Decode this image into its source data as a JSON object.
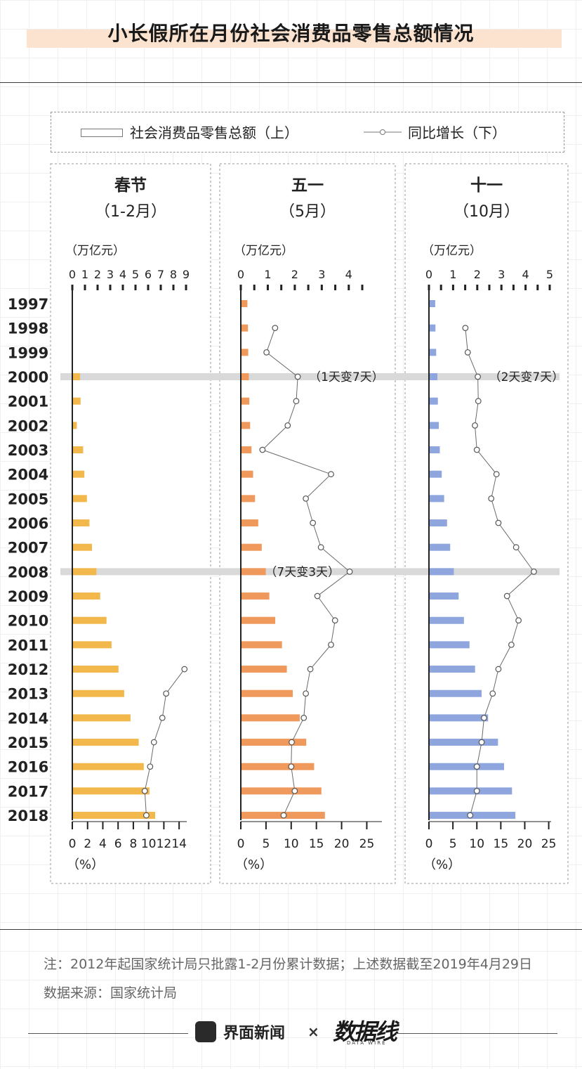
{
  "title": "小长假所在月份社会消费品零售总额情况",
  "legend": {
    "bar_label": "社会消费品零售总额（上）",
    "line_label": "同比增长（下）"
  },
  "chart_data": [
    {
      "type": "bar+line",
      "title": "春节",
      "subtitle": "（1-2月）",
      "top_axis_unit": "（万亿元）",
      "top_ticks": [
        "0",
        "1",
        "2",
        "3",
        "4",
        "5",
        "6",
        "7",
        "8",
        "9"
      ],
      "bottom_axis_unit": "（%）",
      "bottom_ticks": [
        "0",
        "2",
        "4",
        "6",
        "8",
        "10",
        "12",
        "14"
      ],
      "years": [
        "1997",
        "1998",
        "1999",
        "2000",
        "2001",
        "2002",
        "2003",
        "2004",
        "2005",
        "2006",
        "2007",
        "2008",
        "2009",
        "2010",
        "2011",
        "2012",
        "2013",
        "2014",
        "2015",
        "2016",
        "2017",
        "2018"
      ],
      "sales": [
        0,
        0,
        0,
        0.55,
        0.6,
        0.3,
        0.8,
        0.9,
        1.1,
        1.3,
        1.5,
        1.85,
        2.15,
        2.65,
        3.05,
        3.6,
        4.05,
        4.55,
        5.2,
        5.6,
        6.05,
        6.5
      ],
      "growth_years": [
        "2012",
        "2013",
        "2014",
        "2015",
        "2016",
        "2017",
        "2018"
      ],
      "growth": [
        14.7,
        12.3,
        11.8,
        10.7,
        10.2,
        9.5,
        9.7
      ],
      "bar_color": "#f2b84b",
      "xlim_top": [
        0,
        9
      ],
      "xlim_bottom": [
        0,
        15
      ]
    },
    {
      "type": "bar+line",
      "title": "五一",
      "subtitle": "（5月）",
      "top_axis_unit": "（万亿元）",
      "top_ticks": [
        "0",
        "1",
        "2",
        "3",
        "4"
      ],
      "bottom_axis_unit": "（%）",
      "bottom_ticks": [
        "0",
        "5",
        "10",
        "15",
        "20",
        "25"
      ],
      "years": [
        "1997",
        "1998",
        "1999",
        "2000",
        "2001",
        "2002",
        "2003",
        "2004",
        "2005",
        "2006",
        "2007",
        "2008",
        "2009",
        "2010",
        "2011",
        "2012",
        "2013",
        "2014",
        "2015",
        "2016",
        "2017",
        "2018"
      ],
      "sales": [
        0.22,
        0.24,
        0.25,
        0.27,
        0.29,
        0.32,
        0.37,
        0.43,
        0.5,
        0.62,
        0.75,
        0.9,
        1.03,
        1.25,
        1.5,
        1.68,
        1.9,
        2.16,
        2.4,
        2.69,
        2.96,
        3.09
      ],
      "growth_years": [
        "1998",
        "1999",
        "2000",
        "2001",
        "2002",
        "2003",
        "2004",
        "2005",
        "2006",
        "2007",
        "2008",
        "2009",
        "2010",
        "2011",
        "2012",
        "2013",
        "2014",
        "2015",
        "2016",
        "2017",
        "2018"
      ],
      "growth": [
        6.8,
        5.1,
        11.3,
        11.0,
        9.3,
        4.3,
        17.9,
        12.9,
        14.3,
        15.9,
        21.6,
        15.2,
        18.7,
        17.9,
        13.8,
        12.9,
        12.5,
        10.1,
        10.0,
        10.7,
        8.5
      ],
      "annotations": [
        {
          "year": "2000",
          "text": "（1天变7天）"
        },
        {
          "year": "2008",
          "text": "（7天变3天）"
        }
      ],
      "bar_color": "#ef9a5c",
      "xlim_top": [
        0,
        4.5
      ],
      "xlim_bottom": [
        0,
        28
      ]
    },
    {
      "type": "bar+line",
      "title": "十一",
      "subtitle": "（10月）",
      "top_axis_unit": "（万亿元）",
      "top_ticks": [
        "0",
        "1",
        "2",
        "3",
        "4",
        "5"
      ],
      "bottom_axis_unit": "（%）",
      "bottom_ticks": [
        "0",
        "5",
        "10",
        "15",
        "20",
        "25"
      ],
      "years": [
        "1997",
        "1998",
        "1999",
        "2000",
        "2001",
        "2002",
        "2003",
        "2004",
        "2005",
        "2006",
        "2007",
        "2008",
        "2009",
        "2010",
        "2011",
        "2012",
        "2013",
        "2014",
        "2015",
        "2016",
        "2017",
        "2018"
      ],
      "sales": [
        0.23,
        0.24,
        0.27,
        0.32,
        0.34,
        0.38,
        0.42,
        0.5,
        0.6,
        0.72,
        0.85,
        1.0,
        1.2,
        1.42,
        1.65,
        1.88,
        2.15,
        2.42,
        2.83,
        3.08,
        3.41,
        3.55
      ],
      "growth_years": [
        "1998",
        "1999",
        "2000",
        "2001",
        "2002",
        "2003",
        "2004",
        "2005",
        "2006",
        "2007",
        "2008",
        "2009",
        "2010",
        "2011",
        "2012",
        "2013",
        "2014",
        "2015",
        "2016",
        "2017",
        "2018"
      ],
      "growth": [
        7.6,
        8.1,
        10.2,
        10.3,
        9.6,
        10.0,
        14.1,
        13.0,
        14.5,
        18.2,
        21.9,
        16.3,
        18.7,
        17.2,
        14.5,
        13.3,
        11.5,
        11.0,
        10.0,
        10.0,
        8.6
      ],
      "annotations": [
        {
          "year": "2000",
          "text": "（2天变7天）"
        }
      ],
      "bar_color": "#8ea5dd",
      "xlim_top": [
        0,
        5
      ],
      "xlim_bottom": [
        0,
        25.5
      ]
    }
  ],
  "footnote": "注：2012年起国家统计局只批露1-2月份累计数据；上述数据截至2019年4月29日",
  "source": "数据来源：国家统计局",
  "brand": {
    "name": "界面新闻",
    "separator": "×",
    "partner_logo": "数据线",
    "partner_sub": "DATA WIRE"
  },
  "colors": {
    "title_band": "#fbe3cf",
    "highlight_band": "#d9d9d9",
    "line": "#6a6a6a"
  }
}
